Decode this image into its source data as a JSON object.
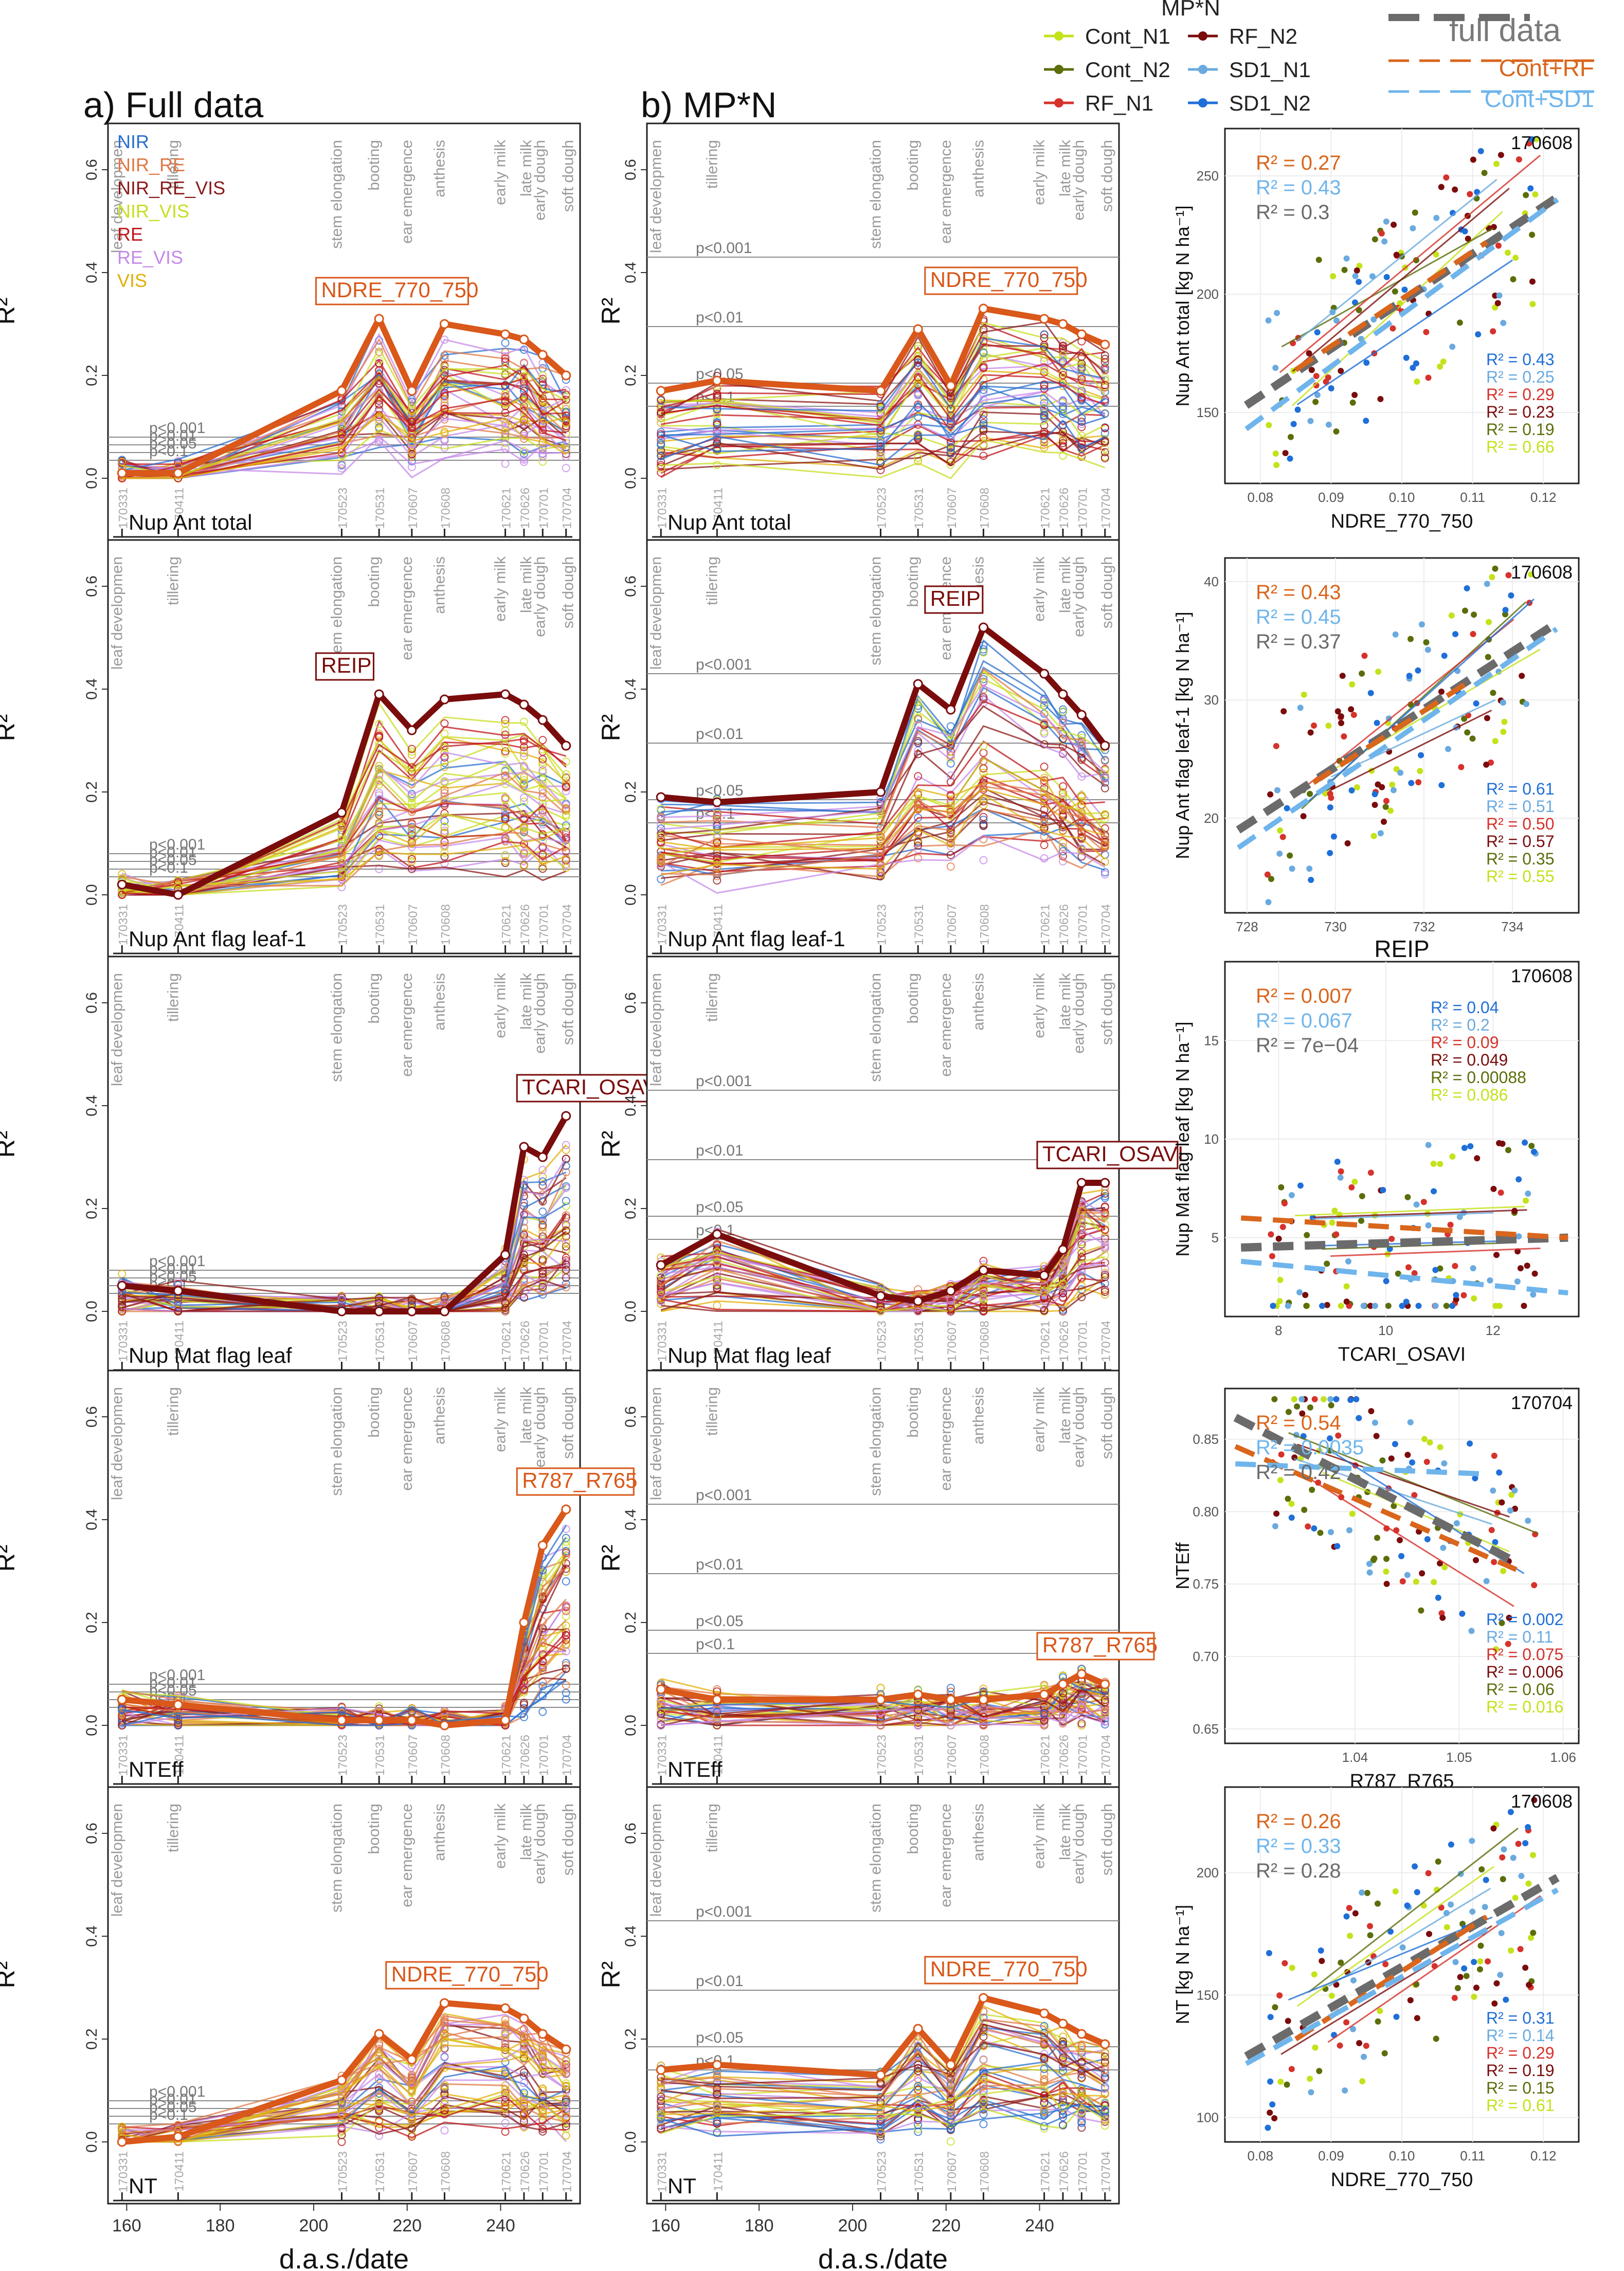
{
  "figure": {
    "legend": {
      "title": "MP*N",
      "items": [
        {
          "name": "Cont_N1",
          "color": "#c5e11a"
        },
        {
          "name": "Cont_N2",
          "color": "#5a6e0a"
        },
        {
          "name": "RF_N1",
          "color": "#d6322c"
        },
        {
          "name": "RF_N2",
          "color": "#7a0c0c"
        },
        {
          "name": "SD1_N1",
          "color": "#6aaadf"
        },
        {
          "name": "SD1_N2",
          "color": "#1f6fd8"
        }
      ],
      "fit_title": "full data",
      "fit_items": [
        {
          "name": "Cont+RF",
          "color": "#d9661c"
        },
        {
          "name": "Cont+SD1",
          "color": "#6fb5ec"
        }
      ]
    },
    "column_a_title": "a) Full data",
    "column_b_title": "b) MP*N",
    "ylabel": "R²",
    "xlabel": "d.a.s./date",
    "x_ticks": [
      160,
      180,
      200,
      220,
      240
    ],
    "y_ticks": [
      "0.0",
      "0.2",
      "0.4",
      "0.6"
    ],
    "stage_labels": [
      "leaf developmen",
      "tillering",
      "stem elongation",
      "booting",
      "ear emergence",
      "anthesis",
      "early milk",
      "late milk",
      "early dough",
      "soft dough"
    ],
    "date_labels": [
      "170331",
      "170411",
      "170523",
      "170531",
      "170607",
      "170608",
      "170621",
      "170626",
      "170701",
      "170704"
    ],
    "index_groups": [
      {
        "name": "NIR",
        "color": "#2a6fcf"
      },
      {
        "name": "NIR_RE",
        "color": "#e07845"
      },
      {
        "name": "NIR_RE_VIS",
        "color": "#8b1a1a"
      },
      {
        "name": "NIR_VIS",
        "color": "#c8de22"
      },
      {
        "name": "RE",
        "color": "#c0161b"
      },
      {
        "name": "RE_VIS",
        "color": "#c58ae8"
      },
      {
        "name": "VIS",
        "color": "#e0b00a"
      }
    ],
    "sig_levels_a": [
      "p<0.001",
      "p<0.01",
      "p<0.05",
      "p<0.1"
    ],
    "sig_levels_b": [
      "p<0.001",
      "p<0.01",
      "p<0.05",
      "p<0.1"
    ]
  },
  "chart_data": [
    {
      "type": "line",
      "panel": "a",
      "row": 1,
      "trait": "Nup Ant  total",
      "best_index": "NDRE_770_750",
      "best_color": "#d9581a",
      "x": [
        159,
        171,
        206,
        214,
        221,
        228,
        241,
        245,
        249,
        254
      ],
      "best_values": [
        0.01,
        0.01,
        0.17,
        0.31,
        0.17,
        0.3,
        0.28,
        0.27,
        0.24,
        0.2
      ],
      "ylim": [
        0,
        0.65
      ]
    },
    {
      "type": "line",
      "panel": "b",
      "row": 1,
      "trait": "Nup Ant  total",
      "best_index": "NDRE_770_750",
      "best_color": "#d9581a",
      "x": [
        159,
        171,
        206,
        214,
        221,
        228,
        241,
        245,
        249,
        254
      ],
      "best_values": [
        0.17,
        0.19,
        0.17,
        0.29,
        0.18,
        0.33,
        0.31,
        0.3,
        0.28,
        0.26
      ],
      "ylim": [
        0,
        0.65
      ]
    },
    {
      "type": "line",
      "panel": "a",
      "row": 2,
      "trait": "Nup Ant flag leaf-1",
      "best_index": "REIP",
      "best_color": "#7a0c0c",
      "x": [
        159,
        171,
        206,
        214,
        221,
        228,
        241,
        245,
        249,
        254
      ],
      "best_values": [
        0.02,
        0.0,
        0.16,
        0.39,
        0.32,
        0.38,
        0.39,
        0.37,
        0.34,
        0.29
      ],
      "ylim": [
        0,
        0.65
      ]
    },
    {
      "type": "line",
      "panel": "b",
      "row": 2,
      "trait": "Nup Ant flag leaf-1",
      "best_index": "REIP",
      "best_color": "#7a0c0c",
      "x": [
        159,
        171,
        206,
        214,
        221,
        228,
        241,
        245,
        249,
        254
      ],
      "best_values": [
        0.19,
        0.18,
        0.2,
        0.41,
        0.36,
        0.52,
        0.43,
        0.39,
        0.35,
        0.29
      ],
      "ylim": [
        0,
        0.65
      ]
    },
    {
      "type": "line",
      "panel": "a",
      "row": 3,
      "trait": "Nup Mat  flag leaf",
      "best_index": "TCARI_OSAVI",
      "best_color": "#7a0c0c",
      "x": [
        159,
        171,
        206,
        214,
        221,
        228,
        241,
        245,
        249,
        254
      ],
      "best_values": [
        0.05,
        0.04,
        0.0,
        0.0,
        0.0,
        0.0,
        0.11,
        0.32,
        0.3,
        0.38
      ],
      "ylim": [
        0,
        0.65
      ]
    },
    {
      "type": "line",
      "panel": "b",
      "row": 3,
      "trait": "Nup Mat  flag leaf",
      "best_index": "TCARI_OSAVI",
      "best_color": "#7a0c0c",
      "x": [
        159,
        171,
        206,
        214,
        221,
        228,
        241,
        245,
        249,
        254
      ],
      "best_values": [
        0.09,
        0.15,
        0.03,
        0.02,
        0.04,
        0.08,
        0.07,
        0.12,
        0.25,
        0.25
      ],
      "ylim": [
        0,
        0.65
      ]
    },
    {
      "type": "line",
      "panel": "a",
      "row": 4,
      "trait": "NTEff",
      "best_index": "R787_R765",
      "best_color": "#d9581a",
      "x": [
        159,
        171,
        206,
        214,
        221,
        228,
        241,
        245,
        249,
        254
      ],
      "best_values": [
        0.05,
        0.04,
        0.01,
        0.01,
        0.01,
        0.0,
        0.01,
        0.2,
        0.35,
        0.42
      ],
      "ylim": [
        0,
        0.65
      ]
    },
    {
      "type": "line",
      "panel": "b",
      "row": 4,
      "trait": "NTEff",
      "best_index": "R787_R765",
      "best_color": "#d9581a",
      "x": [
        159,
        171,
        206,
        214,
        221,
        228,
        241,
        245,
        249,
        254
      ],
      "best_values": [
        0.07,
        0.05,
        0.05,
        0.06,
        0.05,
        0.05,
        0.06,
        0.08,
        0.1,
        0.08
      ],
      "ylim": [
        0,
        0.65
      ]
    },
    {
      "type": "line",
      "panel": "a",
      "row": 5,
      "trait": "NT",
      "best_index": "NDRE_770_750",
      "best_color": "#d9581a",
      "x": [
        159,
        171,
        206,
        214,
        221,
        228,
        241,
        245,
        249,
        254
      ],
      "best_values": [
        0.0,
        0.01,
        0.12,
        0.21,
        0.16,
        0.27,
        0.26,
        0.24,
        0.21,
        0.18
      ],
      "ylim": [
        0,
        0.65
      ]
    },
    {
      "type": "line",
      "panel": "b",
      "row": 5,
      "trait": "NT",
      "best_index": "NDRE_770_750",
      "best_color": "#d9581a",
      "x": [
        159,
        171,
        206,
        214,
        221,
        228,
        241,
        245,
        249,
        254
      ],
      "best_values": [
        0.14,
        0.15,
        0.13,
        0.22,
        0.15,
        0.28,
        0.25,
        0.23,
        0.21,
        0.19
      ],
      "ylim": [
        0,
        0.65
      ]
    },
    {
      "type": "scatter",
      "panel": "c",
      "row": 1,
      "date": "170608",
      "xlabel": "NDRE_770_750",
      "ylabel": "Nup Ant total [kg N ha⁻¹]",
      "xlim": [
        0.075,
        0.125
      ],
      "ylim": [
        120,
        270
      ],
      "xticks": [
        "0.08",
        "0.09",
        "0.10",
        "0.11",
        "0.12"
      ],
      "yticks": [
        "150",
        "200",
        "250"
      ],
      "r2_fits": [
        {
          "name": "Cont+RF",
          "value": "0.27"
        },
        {
          "name": "Cont+SD1",
          "value": "0.43"
        },
        {
          "name": "full data",
          "value": "0.3"
        }
      ],
      "r2_groups": [
        {
          "name": "SD1_N2",
          "value": "0.43"
        },
        {
          "name": "SD1_N1",
          "value": "0.25"
        },
        {
          "name": "RF_N1",
          "value": "0.29"
        },
        {
          "name": "RF_N2",
          "value": "0.23"
        },
        {
          "name": "Cont_N2",
          "value": "0.19"
        },
        {
          "name": "Cont_N1",
          "value": "0.66"
        }
      ],
      "fit_lines": [
        {
          "name": "full data",
          "x": [
            0.078,
            0.122
          ],
          "y": [
            153,
            241
          ]
        },
        {
          "name": "Cont+RF",
          "x": [
            0.085,
            0.112
          ],
          "y": [
            168,
            222
          ]
        },
        {
          "name": "Cont+SD1",
          "x": [
            0.078,
            0.122
          ],
          "y": [
            143,
            240
          ]
        }
      ]
    },
    {
      "type": "scatter",
      "panel": "c",
      "row": 2,
      "date": "170608",
      "xlabel": "REIP",
      "ylabel": "Nup Ant flag leaf-1 [kg N ha⁻¹]",
      "xlim": [
        727.5,
        735.5
      ],
      "ylim": [
        12,
        42
      ],
      "xticks": [
        "728",
        "730",
        "732",
        "734"
      ],
      "yticks": [
        "20",
        "30",
        "40"
      ],
      "r2_fits": [
        {
          "name": "Cont+RF",
          "value": "0.43"
        },
        {
          "name": "Cont+SD1",
          "value": "0.45"
        },
        {
          "name": "full data",
          "value": "0.37"
        }
      ],
      "r2_groups": [
        {
          "name": "SD1_N2",
          "value": "0.61"
        },
        {
          "name": "SD1_N1",
          "value": "0.51"
        },
        {
          "name": "RF_N1",
          "value": "0.50"
        },
        {
          "name": "RF_N2",
          "value": "0.57"
        },
        {
          "name": "Cont_N2",
          "value": "0.35"
        },
        {
          "name": "Cont_N1",
          "value": "0.55"
        }
      ],
      "fit_lines": [
        {
          "name": "full data",
          "x": [
            727.8,
            735.0
          ],
          "y": [
            19,
            36.5
          ]
        },
        {
          "name": "Cont+RF",
          "x": [
            729.5,
            733.0
          ],
          "y": [
            23,
            31.5
          ]
        },
        {
          "name": "Cont+SD1",
          "x": [
            727.8,
            735.0
          ],
          "y": [
            17.5,
            36
          ]
        }
      ]
    },
    {
      "type": "scatter",
      "panel": "c",
      "row": 3,
      "date": "170608",
      "xlabel": "TCARI_OSAVI",
      "ylabel": "Nup Mat flag leaf [kg N ha⁻¹]",
      "xlim": [
        7.0,
        13.6
      ],
      "ylim": [
        1,
        19
      ],
      "xticks": [
        "8",
        "10",
        "12"
      ],
      "yticks": [
        "5",
        "10",
        "15"
      ],
      "r2_fits": [
        {
          "name": "Cont+RF",
          "value": "0.007"
        },
        {
          "name": "Cont+SD1",
          "value": "0.067"
        },
        {
          "name": "full data",
          "value": "7e−04"
        }
      ],
      "r2_groups": [
        {
          "name": "SD1_N2",
          "value": "0.04"
        },
        {
          "name": "SD1_N1",
          "value": "0.2"
        },
        {
          "name": "RF_N1",
          "value": "0.09"
        },
        {
          "name": "RF_N2",
          "value": "0.049"
        },
        {
          "name": "Cont_N2",
          "value": "0.00088"
        },
        {
          "name": "Cont_N1",
          "value": "0.086"
        }
      ],
      "fit_lines": [
        {
          "name": "full data",
          "x": [
            7.3,
            13.4
          ],
          "y": [
            4.5,
            5.0
          ]
        },
        {
          "name": "Cont+RF",
          "x": [
            7.3,
            13.4
          ],
          "y": [
            6.0,
            5.0
          ]
        },
        {
          "name": "Cont+SD1",
          "x": [
            7.3,
            13.4
          ],
          "y": [
            3.8,
            2.2
          ]
        }
      ]
    },
    {
      "type": "scatter",
      "panel": "c",
      "row": 4,
      "date": "170704",
      "xlabel": "R787_R765",
      "ylabel": "NTEff",
      "xlim": [
        1.0275,
        1.0615
      ],
      "ylim": [
        0.64,
        0.885
      ],
      "xticks": [
        "1.04",
        "1.05",
        "1.06"
      ],
      "yticks": [
        "0.65",
        "0.70",
        "0.75",
        "0.80",
        "0.85"
      ],
      "r2_fits": [
        {
          "name": "Cont+RF",
          "value": "0.54"
        },
        {
          "name": "Cont+SD1",
          "value": "0.0035"
        },
        {
          "name": "full data",
          "value": "0.42"
        }
      ],
      "r2_groups": [
        {
          "name": "SD1_N2",
          "value": "0.002"
        },
        {
          "name": "SD1_N1",
          "value": "0.11"
        },
        {
          "name": "RF_N1",
          "value": "0.075"
        },
        {
          "name": "RF_N2",
          "value": "0.006"
        },
        {
          "name": "Cont_N2",
          "value": "0.06"
        },
        {
          "name": "Cont_N1",
          "value": "0.016"
        }
      ],
      "fit_lines": [
        {
          "name": "full data",
          "x": [
            1.0285,
            1.0555
          ],
          "y": [
            0.865,
            0.765
          ]
        },
        {
          "name": "Cont+RF",
          "x": [
            1.0285,
            1.0555
          ],
          "y": [
            0.845,
            0.76
          ]
        },
        {
          "name": "Cont+SD1",
          "x": [
            1.0285,
            1.0525
          ],
          "y": [
            0.833,
            0.826
          ]
        }
      ]
    },
    {
      "type": "scatter",
      "panel": "c",
      "row": 5,
      "date": "170608",
      "xlabel": "NDRE_770_750",
      "ylabel": "NT [kg N ha⁻¹]",
      "xlim": [
        0.075,
        0.125
      ],
      "ylim": [
        90,
        235
      ],
      "xticks": [
        "0.08",
        "0.09",
        "0.10",
        "0.11",
        "0.12"
      ],
      "yticks": [
        "100",
        "150",
        "200"
      ],
      "r2_fits": [
        {
          "name": "Cont+RF",
          "value": "0.26"
        },
        {
          "name": "Cont+SD1",
          "value": "0.33"
        },
        {
          "name": "full data",
          "value": "0.28"
        }
      ],
      "r2_groups": [
        {
          "name": "SD1_N2",
          "value": "0.31"
        },
        {
          "name": "SD1_N1",
          "value": "0.14"
        },
        {
          "name": "RF_N1",
          "value": "0.29"
        },
        {
          "name": "RF_N2",
          "value": "0.19"
        },
        {
          "name": "Cont_N2",
          "value": "0.15"
        },
        {
          "name": "Cont_N1",
          "value": "0.61"
        }
      ],
      "fit_lines": [
        {
          "name": "full data",
          "x": [
            0.078,
            0.122
          ],
          "y": [
            125,
            198
          ]
        },
        {
          "name": "Cont+RF",
          "x": [
            0.085,
            0.112
          ],
          "y": [
            132,
            182
          ]
        },
        {
          "name": "Cont+SD1",
          "x": [
            0.078,
            0.122
          ],
          "y": [
            122,
            193
          ]
        }
      ]
    }
  ]
}
